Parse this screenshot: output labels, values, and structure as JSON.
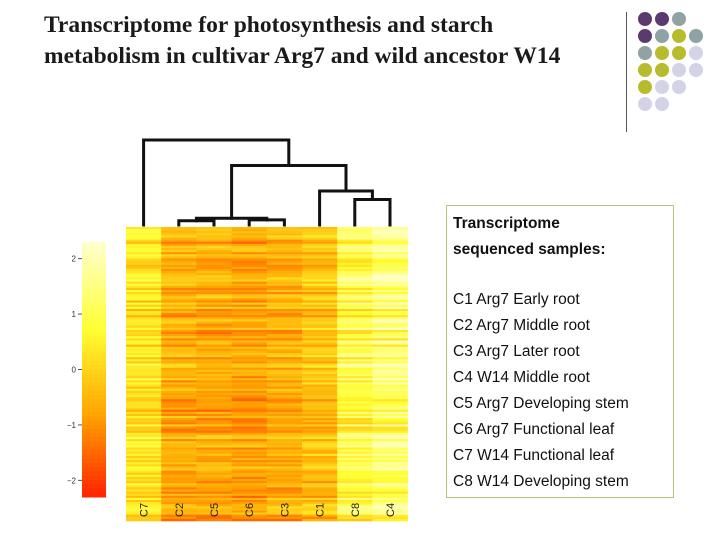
{
  "slide": {
    "title": "Transcriptome for photosynthesis and starch metabolism in cultivar Arg7 and wild ancestor W14"
  },
  "decor": {
    "dot_colors": [
      "#5b3b6e",
      "#8fa3a4",
      "#b9bb2f",
      "#d4d3e6"
    ]
  },
  "legend": {
    "heading_line1": "Transcriptome",
    "heading_line2": "sequenced samples:",
    "items": [
      "C1 Arg7 Early root",
      "C2 Arg7 Middle root",
      "C3 Arg7 Later root",
      "C4 W14 Middle root",
      "C5 Arg7 Developing stem",
      "C6 Arg7 Functional leaf",
      "C7 W14 Functional leaf",
      "C8 W14 Developing stem"
    ]
  },
  "chart_data": {
    "type": "heatmap",
    "title": "",
    "columns": [
      "C7",
      "C2",
      "C5",
      "C6",
      "C3",
      "C1",
      "C8",
      "C4"
    ],
    "color_scale": {
      "ticks": [
        "2",
        "1",
        "0",
        "−1",
        "−2"
      ],
      "tick_values": [
        2,
        1,
        0,
        -1,
        -2
      ],
      "range": [
        -2.3,
        2.3
      ],
      "colors": [
        "#ff1f00",
        "#ffa500",
        "#ffff33",
        "#ffffcc"
      ]
    },
    "dendrogram": {
      "leaves": [
        "C7",
        "C2",
        "C5",
        "C6",
        "C3",
        "C1",
        "C8",
        "C4"
      ],
      "merges": [
        {
          "left": "C2",
          "right": "C5",
          "height": 0.05
        },
        {
          "left": "C6",
          "right": "C3",
          "height": 0.06
        },
        {
          "left": "C2C5",
          "right": "C6C3",
          "height": 0.08
        },
        {
          "left": "C8",
          "right": "C4",
          "height": 0.3
        },
        {
          "left": "C1",
          "right": "C8C4",
          "height": 0.4
        },
        {
          "left": "C2C5C6C3",
          "right": "C1C8C4",
          "height": 0.7
        },
        {
          "left": "C7",
          "right": "rest",
          "height": 1.0
        }
      ]
    },
    "column_mean_values": [
      0.3,
      -0.6,
      -0.7,
      -0.8,
      -0.6,
      -0.3,
      0.9,
      1.3
    ]
  }
}
